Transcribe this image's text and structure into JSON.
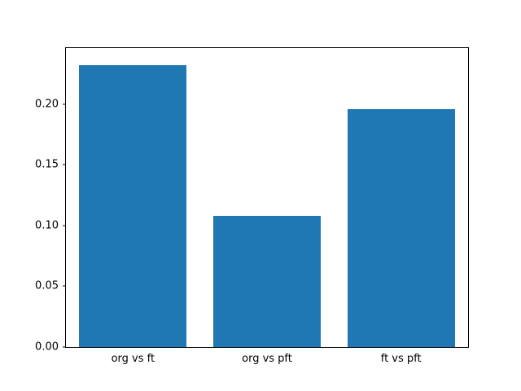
{
  "chart_data": {
    "type": "bar",
    "categories": [
      "org vs ft",
      "org vs pft",
      "ft vs pft"
    ],
    "values": [
      0.232,
      0.108,
      0.196
    ],
    "title": "",
    "xlabel": "",
    "ylabel": "",
    "ylim": [
      0,
      0.246
    ],
    "yticks": [
      0.0,
      0.05,
      0.1,
      0.15,
      0.2
    ],
    "ytick_format_decimals": 2,
    "bar_color": "#1f77b4",
    "bar_width_fraction": 0.8,
    "grid": false,
    "legend": null
  }
}
